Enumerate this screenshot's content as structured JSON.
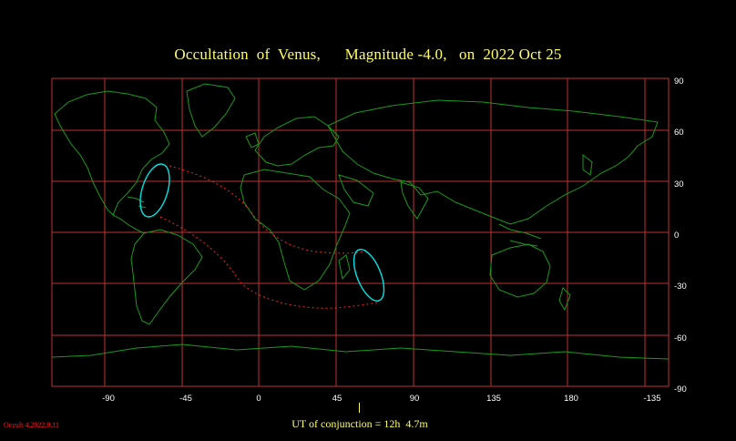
{
  "header": {
    "title": "Occultation  of  Venus,      Magnitude -4.0,   on  2022 Oct 25"
  },
  "map": {
    "lon_ticks": [
      "-90",
      "-45",
      "0",
      "45",
      "90",
      "135",
      "180",
      "-135"
    ],
    "lat_ticks": [
      "90",
      "60",
      "30",
      "0",
      "-30",
      "-60",
      "-90"
    ],
    "colors": {
      "background": "#000000",
      "grid": "#c03030",
      "coast": "#1a9a1a",
      "path": "#ff2020",
      "limit": "#00e5e5",
      "title": "#ffff66",
      "axis_labels": "#ffffff"
    }
  },
  "footer": {
    "ut_conjunction": "UT of conjunction = 12h  4.7m",
    "version": "Occult 4.2022.9.11"
  }
}
